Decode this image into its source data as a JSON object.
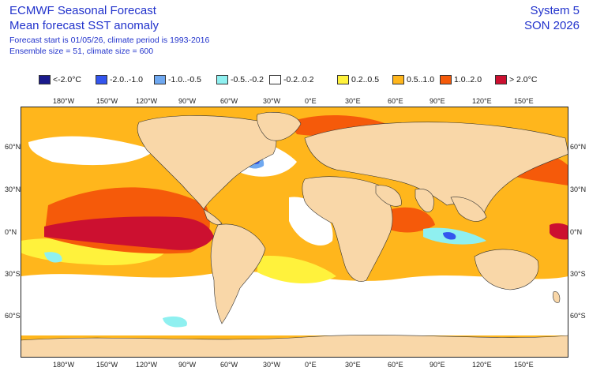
{
  "header": {
    "title": "ECMWF Seasonal Forecast",
    "subtitle": "Mean forecast SST anomaly",
    "forecast_info": "Forecast start is 01/05/26, climate period is 1993-2016",
    "ensemble_info": "Ensemble size = 51, climate size = 600",
    "system": "System 5",
    "season": "SON 2026"
  },
  "legend": [
    {
      "label": "<-2.0°C",
      "color": "#1a1a8c"
    },
    {
      "label": "-2.0..-1.0",
      "color": "#3355ee"
    },
    {
      "label": "-1.0..-0.5",
      "color": "#6fa8f0"
    },
    {
      "label": "-0.5..-0.2",
      "color": "#8ff0f0"
    },
    {
      "label": "-0.2..0.2",
      "color": "#ffffff"
    },
    {
      "label": "0.2..0.5",
      "color": "#fff23c"
    },
    {
      "label": "0.5..1.0",
      "color": "#ffb61c"
    },
    {
      "label": "1.0..2.0",
      "color": "#f55a0a"
    },
    {
      "label": "> 2.0°C",
      "color": "#cc1030"
    }
  ],
  "axes": {
    "lon_labels": [
      "180°W",
      "150°W",
      "120°W",
      "90°W",
      "60°W",
      "30°W",
      "0°E",
      "30°E",
      "60°E",
      "90°E",
      "120°E",
      "150°E"
    ],
    "lat_labels": [
      "60°N",
      "30°N",
      "0°N",
      "30°S",
      "60°S"
    ]
  },
  "land_color": "#f9d7a8"
}
